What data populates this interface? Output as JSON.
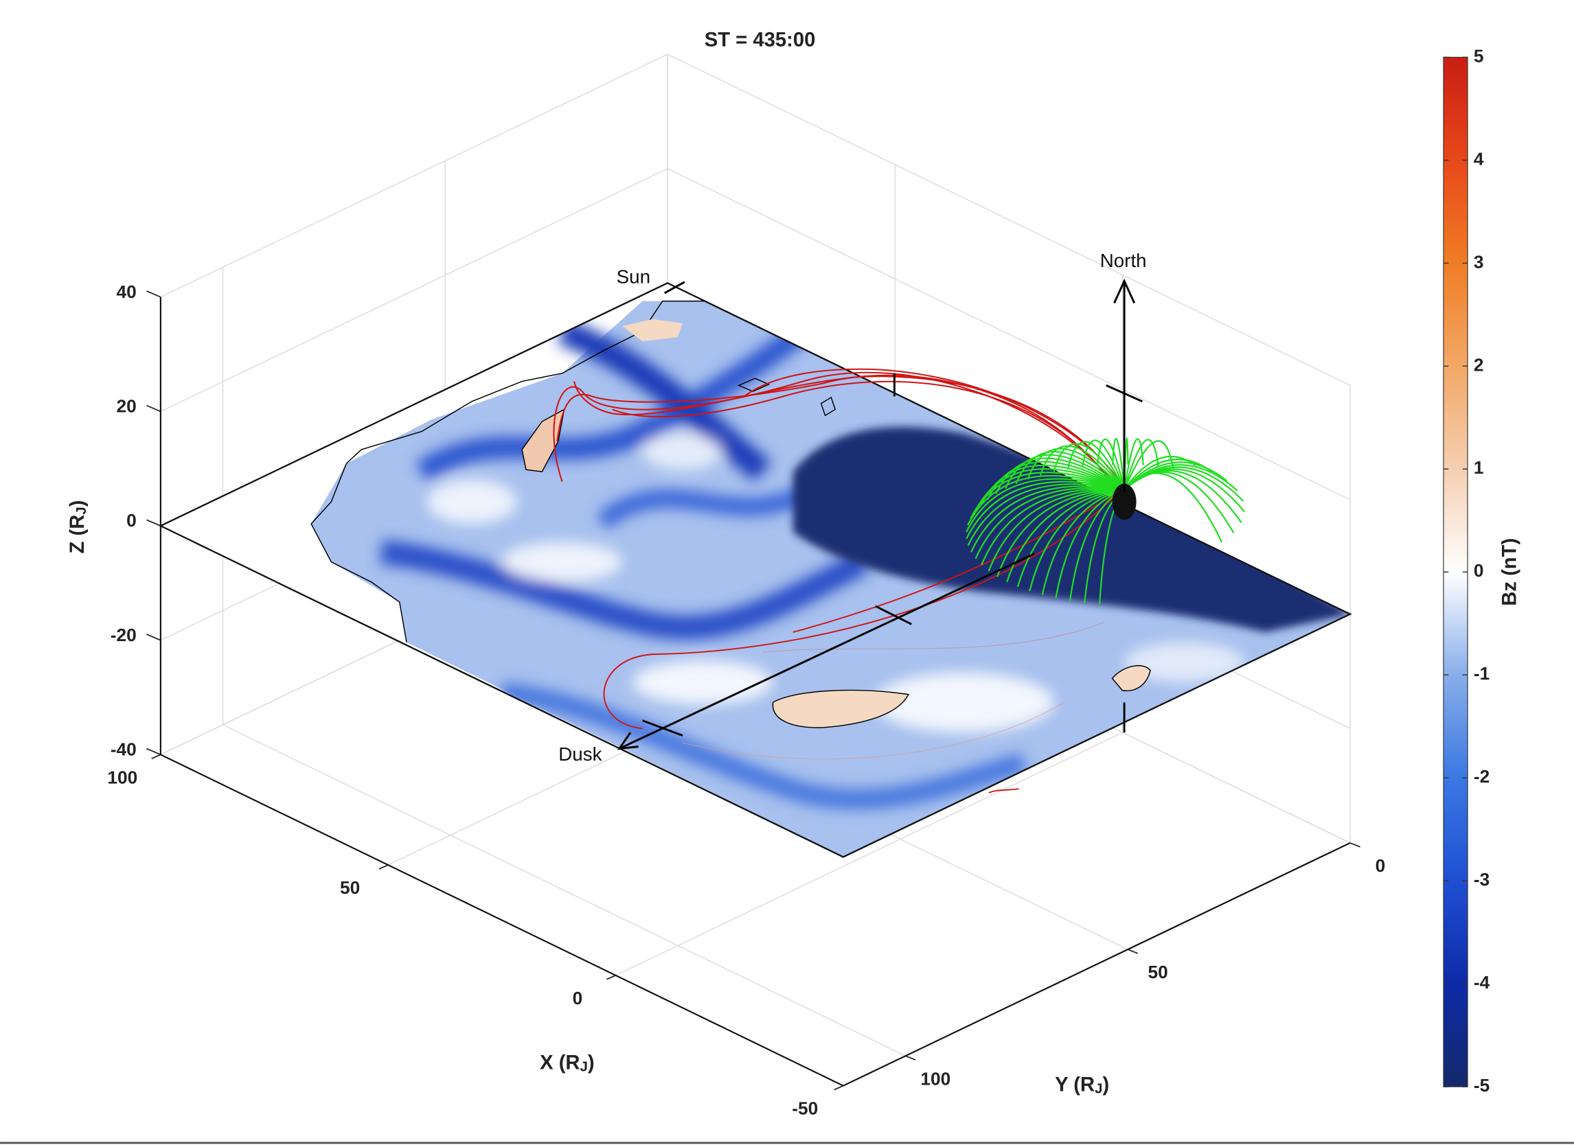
{
  "chart_data": {
    "type": "surface3d",
    "title": "ST = 435:00",
    "xlabel": [
      "X (R",
      "J",
      ")"
    ],
    "ylabel": [
      "Y (R",
      "J",
      ")"
    ],
    "zlabel": [
      "Z (R",
      "J",
      ")"
    ],
    "xlim": [
      -50,
      100
    ],
    "xticks": [
      -50,
      0,
      50,
      100
    ],
    "ylim": [
      0,
      114
    ],
    "yticks": [
      0,
      50,
      100
    ],
    "zlim": [
      -40,
      40
    ],
    "zticks": [
      -40,
      -20,
      0,
      20,
      40
    ],
    "grid": true,
    "colorbar": {
      "label": "Bz (nT)",
      "clim": [
        -5,
        5
      ],
      "ticks": [
        -5,
        -4,
        -3,
        -2,
        -1,
        0,
        1,
        2,
        3,
        4,
        5
      ],
      "colormap": [
        "#13296a",
        "#0d2aa8",
        "#1f4fd2",
        "#3a78e2",
        "#88aeea",
        "#ffffff",
        "#f4cfb2",
        "#f3a866",
        "#f07d26",
        "#e8481a",
        "#c81e14"
      ]
    },
    "annotations": {
      "sun": "Sun",
      "north": "North",
      "dusk": "Dusk"
    }
  }
}
